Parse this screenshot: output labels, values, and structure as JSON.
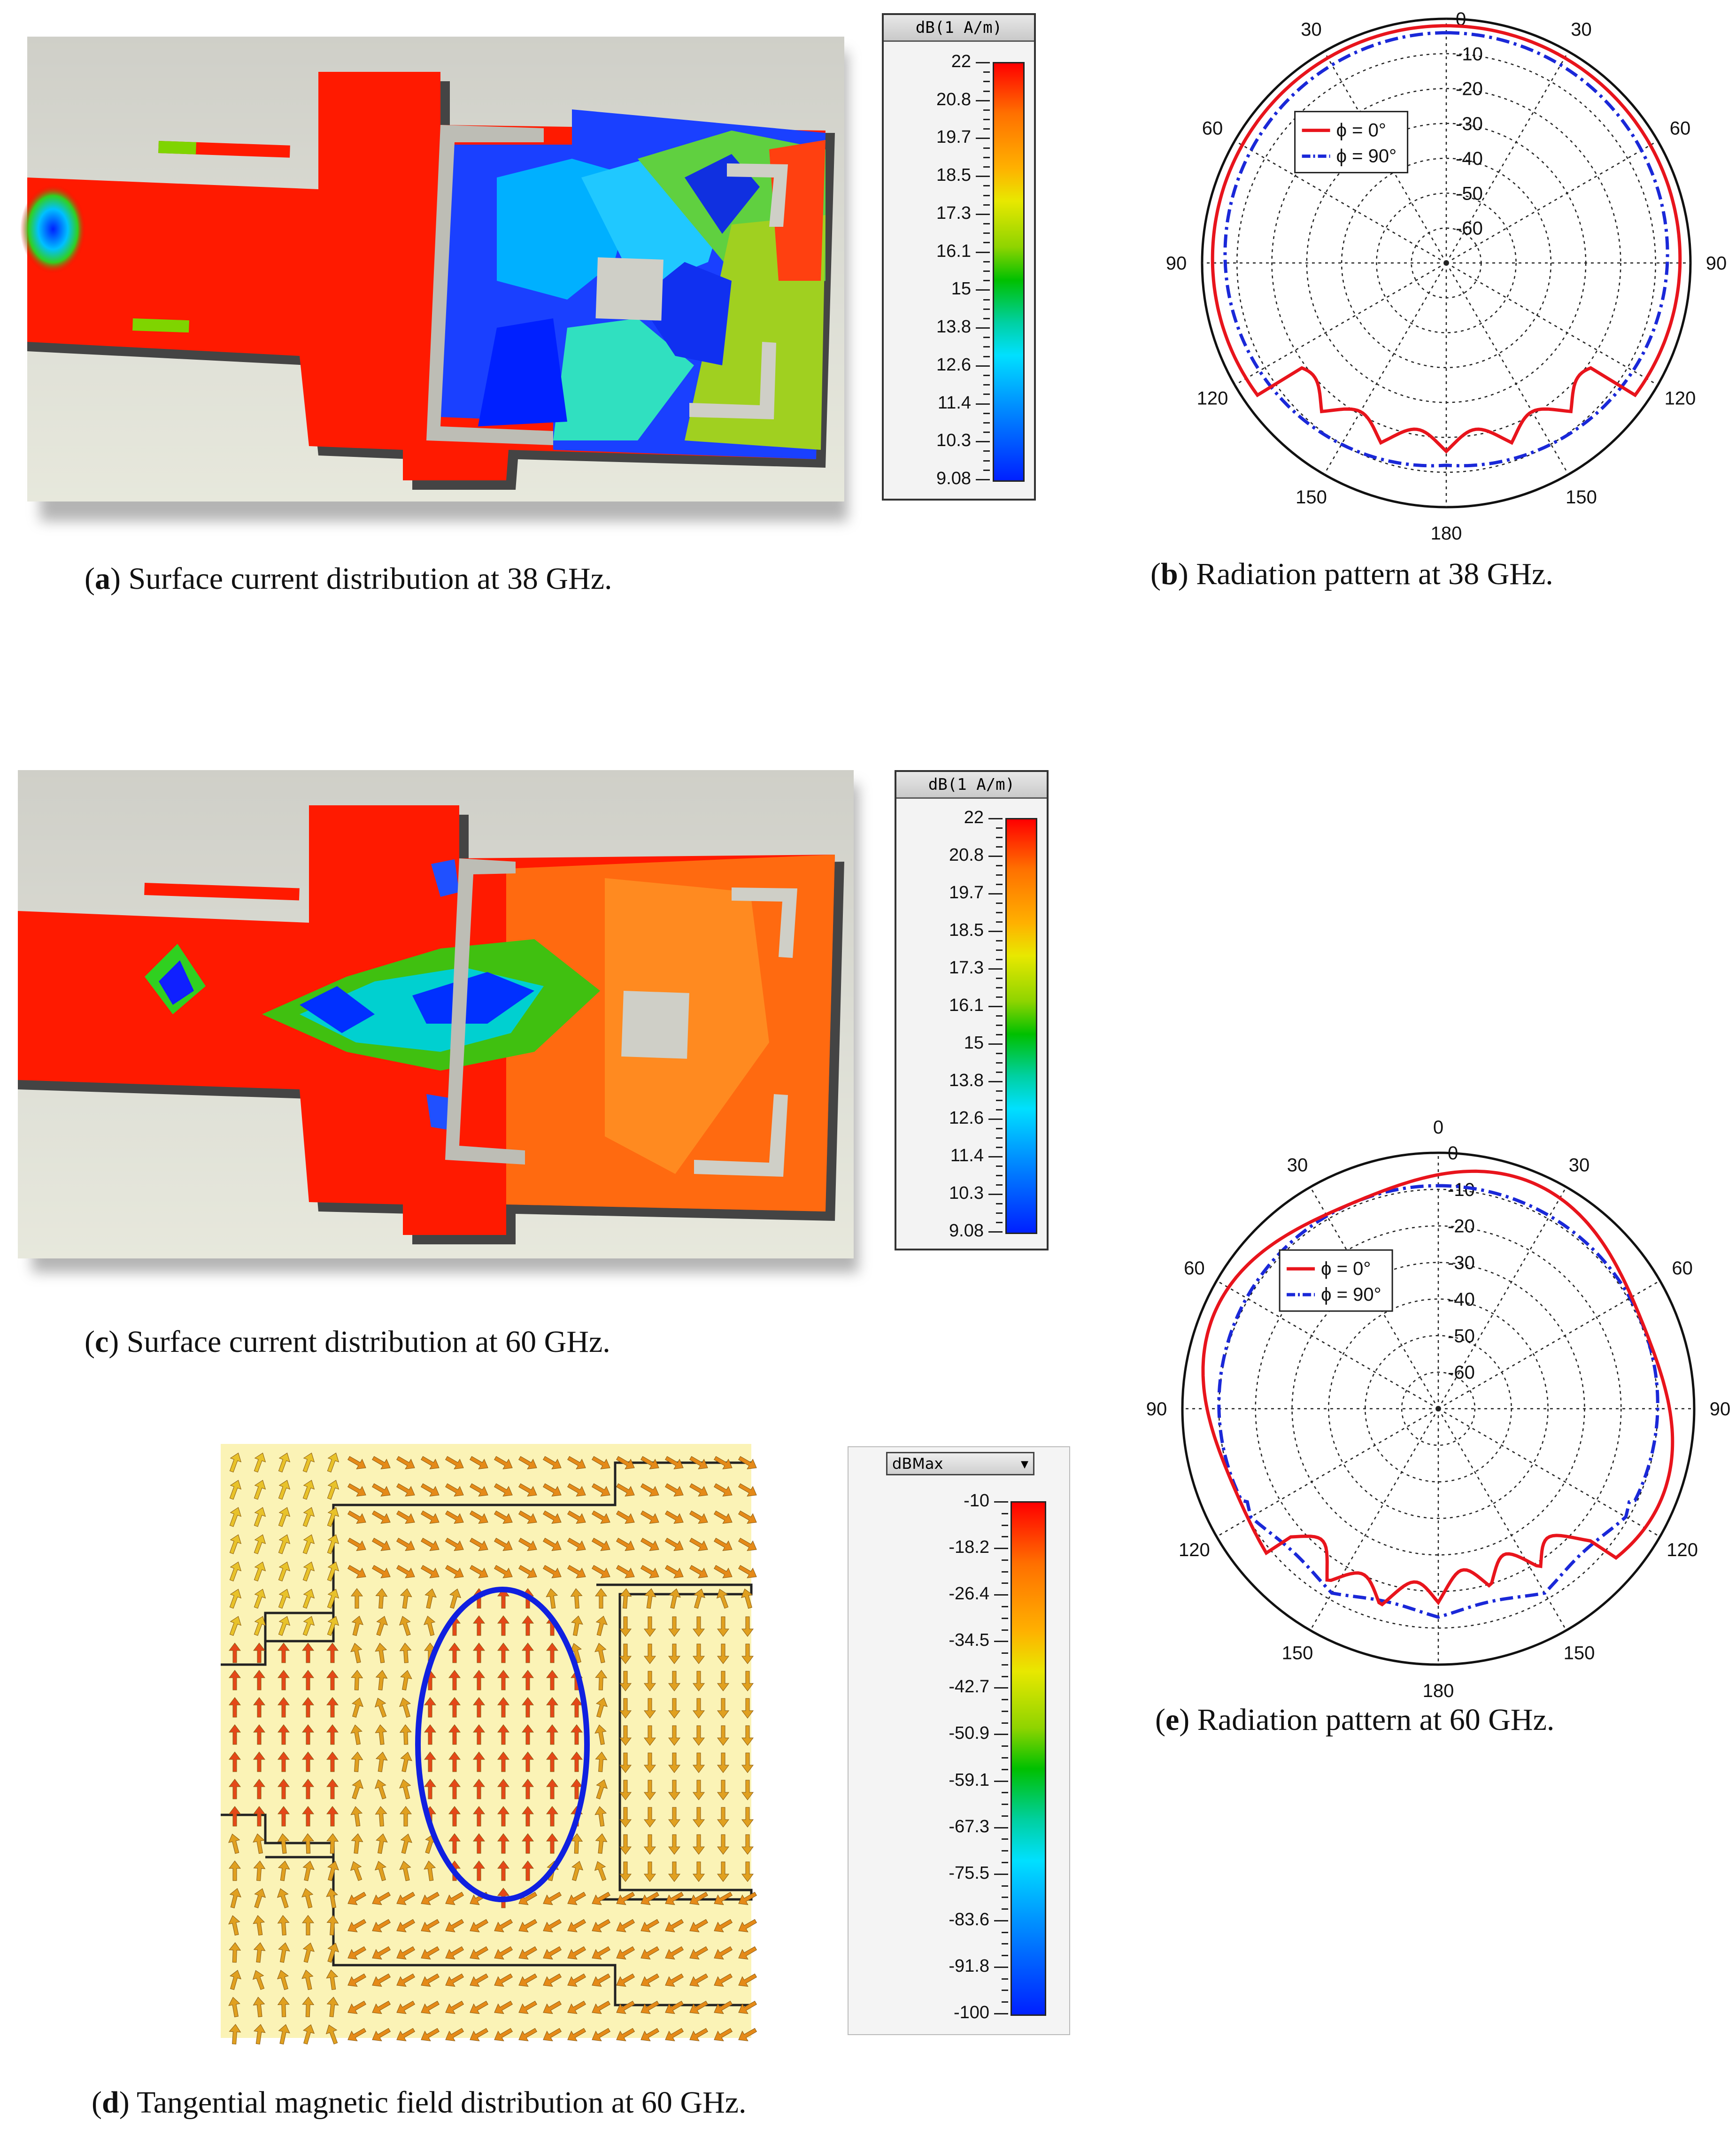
{
  "panel_a": {
    "caption_letter": "a",
    "caption_text": "Surface current distribution at 38 GHz.",
    "legend_title": "dB(1 A/m)",
    "legend_ticks": [
      "22",
      "20.8",
      "19.7",
      "18.5",
      "17.3",
      "16.1",
      "15",
      "13.8",
      "12.6",
      "11.4",
      "10.3",
      "9.08"
    ]
  },
  "panel_b": {
    "caption_letter": "b",
    "caption_text": "Radiation pattern at 38 GHz.",
    "legend": [
      "ϕ = 0°",
      "ϕ = 90°"
    ],
    "angle_labels": [
      "0",
      "30",
      "30",
      "60",
      "60",
      "90",
      "90",
      "120",
      "120",
      "150",
      "150",
      "180"
    ],
    "radial_labels": [
      "0",
      "-10",
      "-20",
      "-30",
      "-40",
      "-50",
      "-60"
    ]
  },
  "panel_c": {
    "caption_letter": "c",
    "caption_text": "Surface current distribution at 60 GHz.",
    "legend_title": "dB(1 A/m)",
    "legend_ticks": [
      "22",
      "20.8",
      "19.7",
      "18.5",
      "17.3",
      "16.1",
      "15",
      "13.8",
      "12.6",
      "11.4",
      "10.3",
      "9.08"
    ]
  },
  "panel_d": {
    "caption_letter": "d",
    "caption_text": "Tangential magnetic field distribution at 60 GHz.",
    "legend_title": "dBMax",
    "legend_ticks": [
      "-10",
      "-18.2",
      "-26.4",
      "-34.5",
      "-42.7",
      "-50.9",
      "-59.1",
      "-67.3",
      "-75.5",
      "-83.6",
      "-91.8",
      "-100"
    ]
  },
  "panel_e": {
    "caption_letter": "e",
    "caption_text": "Radiation pattern at 60 GHz.",
    "legend": [
      "ϕ = 0°",
      "ϕ = 90°"
    ],
    "angle_labels": [
      "0",
      "30",
      "30",
      "60",
      "60",
      "90",
      "90",
      "120",
      "120",
      "150",
      "150",
      "180"
    ],
    "radial_labels": [
      "0",
      "-10",
      "-20",
      "-30",
      "-40",
      "-50",
      "-60"
    ]
  },
  "colors": {
    "phi0": "#e8141c",
    "phi90": "#1a28d8",
    "ellipse": "#1020e0"
  }
}
